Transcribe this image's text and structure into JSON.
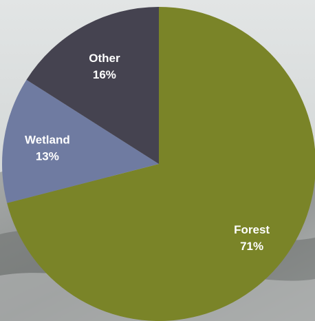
{
  "chart_data": {
    "type": "pie",
    "title": "",
    "start_angle_deg": 0,
    "direction": "clockwise",
    "slices": [
      {
        "label": "Forest",
        "value": 71,
        "value_label": "71%",
        "color": "#7a8428"
      },
      {
        "label": "Wetland",
        "value": 13,
        "value_label": "13%",
        "color": "#6f7ba1"
      },
      {
        "label": "Other",
        "value": 16,
        "value_label": "16%",
        "color": "#454350"
      }
    ]
  }
}
